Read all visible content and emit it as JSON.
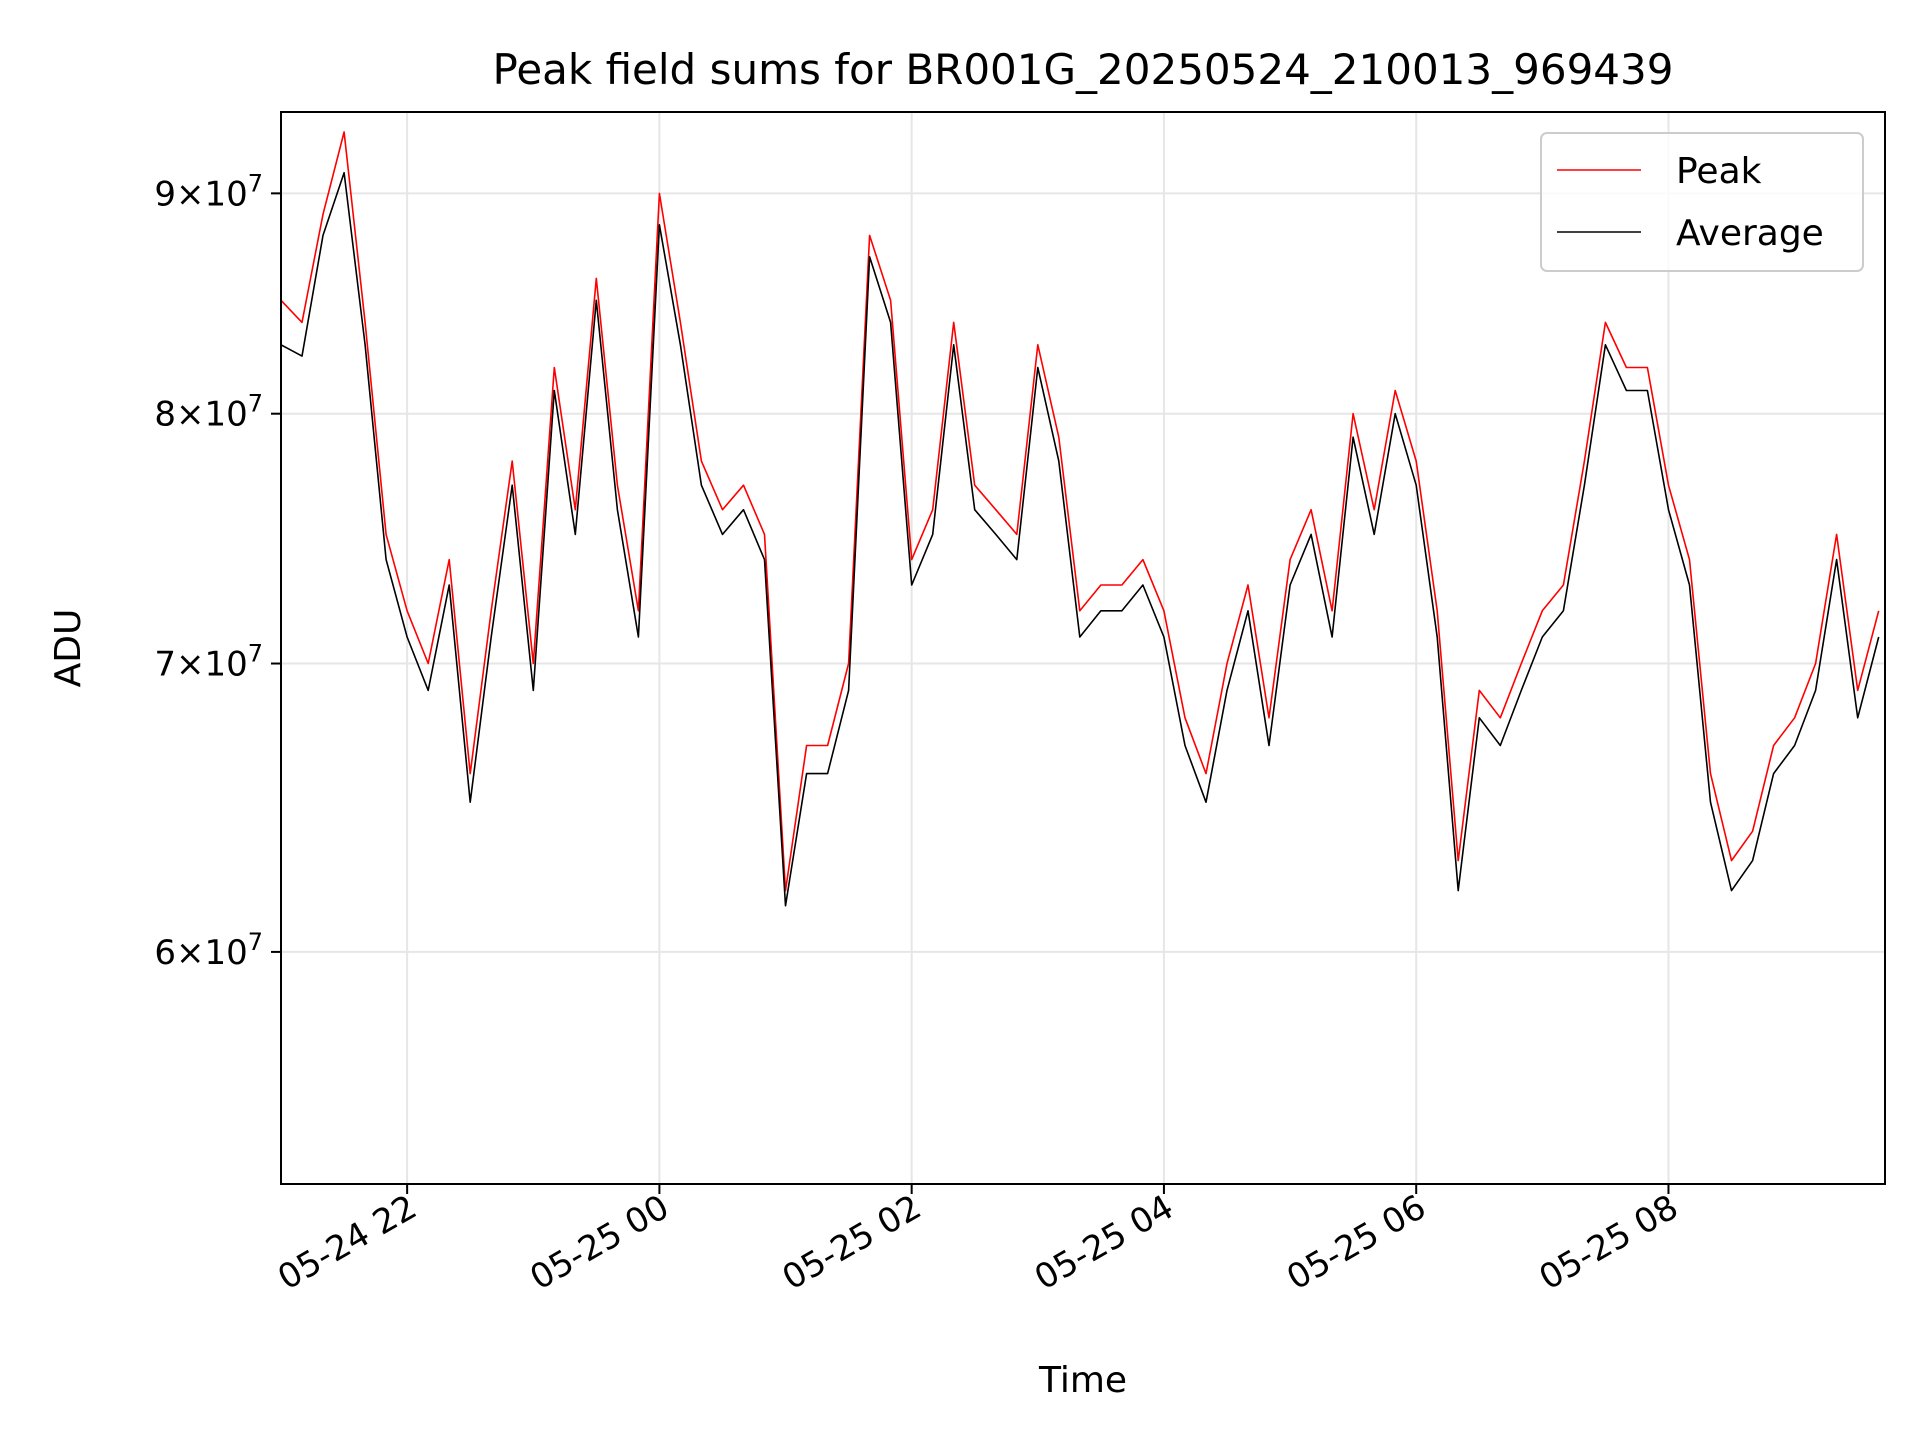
{
  "chart_data": {
    "type": "line",
    "title": "Peak field sums for BR001G_20250524_210013_969439",
    "xlabel": "Time",
    "ylabel": "ADU",
    "x_range": [
      "2025-05-24 21:00",
      "2025-05-25 09:43"
    ],
    "ylim": [
      53000000,
      94000000
    ],
    "y_scale": "log",
    "grid": true,
    "legend_placement": "top-right",
    "x_ticks": [
      "05-24 22",
      "05-25 00",
      "05-25 02",
      "05-25 04",
      "05-25 06",
      "05-25 08"
    ],
    "y_ticks": [
      {
        "base": "6",
        "exp": "7",
        "value": 60000000
      },
      {
        "base": "7",
        "exp": "7",
        "value": 70000000
      },
      {
        "base": "8",
        "exp": "7",
        "value": 80000000
      },
      {
        "base": "9",
        "exp": "7",
        "value": 90000000
      }
    ],
    "series": [
      {
        "name": "Peak",
        "color": "#ff0000",
        "x": [
          "2025-05-24 21:00",
          "2025-05-24 21:10",
          "2025-05-24 21:20",
          "2025-05-24 21:30",
          "2025-05-24 21:40",
          "2025-05-24 21:50",
          "2025-05-24 22:00",
          "2025-05-24 22:10",
          "2025-05-24 22:20",
          "2025-05-24 22:30",
          "2025-05-24 22:40",
          "2025-05-24 22:50",
          "2025-05-24 23:00",
          "2025-05-24 23:10",
          "2025-05-24 23:20",
          "2025-05-24 23:30",
          "2025-05-24 23:40",
          "2025-05-24 23:50",
          "2025-05-25 00:00",
          "2025-05-25 00:10",
          "2025-05-25 00:20",
          "2025-05-25 00:30",
          "2025-05-25 00:40",
          "2025-05-25 00:50",
          "2025-05-25 01:00",
          "2025-05-25 01:10",
          "2025-05-25 01:20",
          "2025-05-25 01:30",
          "2025-05-25 01:40",
          "2025-05-25 01:50",
          "2025-05-25 02:00",
          "2025-05-25 02:10",
          "2025-05-25 02:20",
          "2025-05-25 02:30",
          "2025-05-25 02:40",
          "2025-05-25 02:50",
          "2025-05-25 03:00",
          "2025-05-25 03:10",
          "2025-05-25 03:20",
          "2025-05-25 03:30",
          "2025-05-25 03:40",
          "2025-05-25 03:50",
          "2025-05-25 04:00",
          "2025-05-25 04:10",
          "2025-05-25 04:20",
          "2025-05-25 04:30",
          "2025-05-25 04:40",
          "2025-05-25 04:50",
          "2025-05-25 05:00",
          "2025-05-25 05:10",
          "2025-05-25 05:20",
          "2025-05-25 05:30",
          "2025-05-25 05:40",
          "2025-05-25 05:50",
          "2025-05-25 06:00",
          "2025-05-25 06:10",
          "2025-05-25 06:20",
          "2025-05-25 06:30",
          "2025-05-25 06:40",
          "2025-05-25 06:50",
          "2025-05-25 07:00",
          "2025-05-25 07:10",
          "2025-05-25 07:20",
          "2025-05-25 07:30",
          "2025-05-25 07:40",
          "2025-05-25 07:50",
          "2025-05-25 08:00",
          "2025-05-25 08:10",
          "2025-05-25 08:20",
          "2025-05-25 08:30",
          "2025-05-25 08:40",
          "2025-05-25 08:50",
          "2025-05-25 09:00",
          "2025-05-25 09:10",
          "2025-05-25 09:20",
          "2025-05-25 09:30",
          "2025-05-25 09:40"
        ],
        "y": [
          85000000,
          84000000,
          89000000,
          93000000,
          84000000,
          75000000,
          72000000,
          70000000,
          74000000,
          66000000,
          72000000,
          78000000,
          70000000,
          82000000,
          76000000,
          86000000,
          77000000,
          72000000,
          90000000,
          84000000,
          78000000,
          76000000,
          77000000,
          75000000,
          62000000,
          67000000,
          67000000,
          70000000,
          88000000,
          85000000,
          74000000,
          76000000,
          84000000,
          77000000,
          76000000,
          75000000,
          83000000,
          79000000,
          72000000,
          73000000,
          73000000,
          74000000,
          72000000,
          68000000,
          66000000,
          70000000,
          73000000,
          68000000,
          74000000,
          76000000,
          72000000,
          80000000,
          76000000,
          81000000,
          78000000,
          72000000,
          63000000,
          69000000,
          68000000,
          70000000,
          72000000,
          73000000,
          78000000,
          84000000,
          82000000,
          82000000,
          77000000,
          74000000,
          66000000,
          63000000,
          64000000,
          67000000,
          68000000,
          70000000,
          75000000,
          69000000,
          72000000
        ]
      },
      {
        "name": "Average",
        "color": "#000000",
        "x": [
          "2025-05-24 21:00",
          "2025-05-24 21:10",
          "2025-05-24 21:20",
          "2025-05-24 21:30",
          "2025-05-24 21:40",
          "2025-05-24 21:50",
          "2025-05-24 22:00",
          "2025-05-24 22:10",
          "2025-05-24 22:20",
          "2025-05-24 22:30",
          "2025-05-24 22:40",
          "2025-05-24 22:50",
          "2025-05-24 23:00",
          "2025-05-24 23:10",
          "2025-05-24 23:20",
          "2025-05-24 23:30",
          "2025-05-24 23:40",
          "2025-05-24 23:50",
          "2025-05-25 00:00",
          "2025-05-25 00:10",
          "2025-05-25 00:20",
          "2025-05-25 00:30",
          "2025-05-25 00:40",
          "2025-05-25 00:50",
          "2025-05-25 01:00",
          "2025-05-25 01:10",
          "2025-05-25 01:20",
          "2025-05-25 01:30",
          "2025-05-25 01:40",
          "2025-05-25 01:50",
          "2025-05-25 02:00",
          "2025-05-25 02:10",
          "2025-05-25 02:20",
          "2025-05-25 02:30",
          "2025-05-25 02:40",
          "2025-05-25 02:50",
          "2025-05-25 03:00",
          "2025-05-25 03:10",
          "2025-05-25 03:20",
          "2025-05-25 03:30",
          "2025-05-25 03:40",
          "2025-05-25 03:50",
          "2025-05-25 04:00",
          "2025-05-25 04:10",
          "2025-05-25 04:20",
          "2025-05-25 04:30",
          "2025-05-25 04:40",
          "2025-05-25 04:50",
          "2025-05-25 05:00",
          "2025-05-25 05:10",
          "2025-05-25 05:20",
          "2025-05-25 05:30",
          "2025-05-25 05:40",
          "2025-05-25 05:50",
          "2025-05-25 06:00",
          "2025-05-25 06:10",
          "2025-05-25 06:20",
          "2025-05-25 06:30",
          "2025-05-25 06:40",
          "2025-05-25 06:50",
          "2025-05-25 07:00",
          "2025-05-25 07:10",
          "2025-05-25 07:20",
          "2025-05-25 07:30",
          "2025-05-25 07:40",
          "2025-05-25 07:50",
          "2025-05-25 08:00",
          "2025-05-25 08:10",
          "2025-05-25 08:20",
          "2025-05-25 08:30",
          "2025-05-25 08:40",
          "2025-05-25 08:50",
          "2025-05-25 09:00",
          "2025-05-25 09:10",
          "2025-05-25 09:20",
          "2025-05-25 09:30",
          "2025-05-25 09:40"
        ],
        "y": [
          83000000,
          82500000,
          88000000,
          91000000,
          83000000,
          74000000,
          71000000,
          69000000,
          73000000,
          65000000,
          71000000,
          77000000,
          69000000,
          81000000,
          75000000,
          85000000,
          76000000,
          71000000,
          88500000,
          83000000,
          77000000,
          75000000,
          76000000,
          74000000,
          61500000,
          66000000,
          66000000,
          69000000,
          87000000,
          84000000,
          73000000,
          75000000,
          83000000,
          76000000,
          75000000,
          74000000,
          82000000,
          78000000,
          71000000,
          72000000,
          72000000,
          73000000,
          71000000,
          67000000,
          65000000,
          69000000,
          72000000,
          67000000,
          73000000,
          75000000,
          71000000,
          79000000,
          75000000,
          80000000,
          77000000,
          71000000,
          62000000,
          68000000,
          67000000,
          69000000,
          71000000,
          72000000,
          77000000,
          83000000,
          81000000,
          81000000,
          76000000,
          73000000,
          65000000,
          62000000,
          63000000,
          66000000,
          67000000,
          69000000,
          74000000,
          68000000,
          71000000
        ]
      }
    ]
  }
}
